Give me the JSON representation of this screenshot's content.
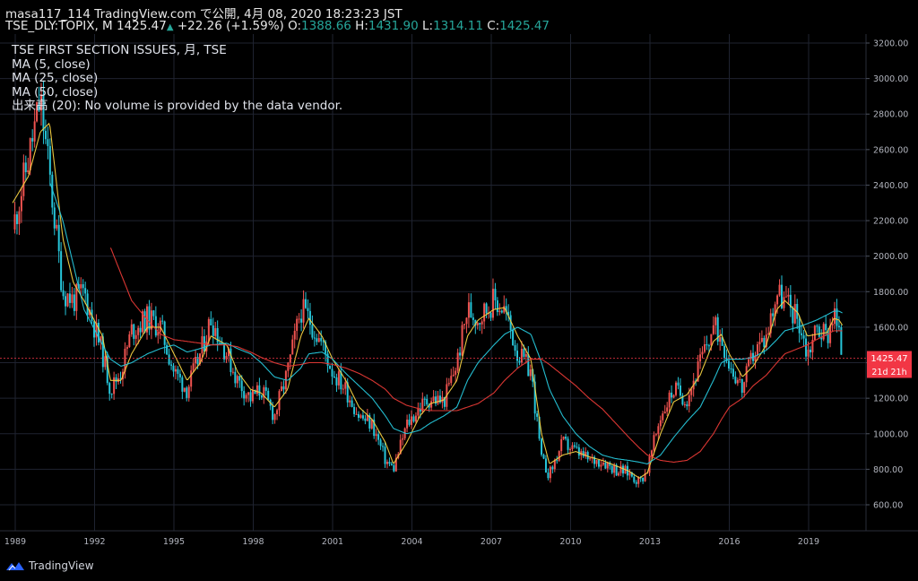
{
  "header": {
    "line1": "masa117_114 TradingView.com で公開, 4月 08, 2020 18:23:23 JST",
    "symbol": "TSE_DLY:TOPIX, M",
    "last": "1425.47",
    "change": "+22.26 (+1.59%)",
    "open_label": "O:",
    "open": "1388.66",
    "high_label": "H:",
    "high": "1431.90",
    "low_label": "L:",
    "low": "1314.11",
    "close_label": "C:",
    "close": "1425.47"
  },
  "legend": {
    "title": "TSE FIRST SECTION ISSUES, 月, TSE",
    "ma5": "MA (5, close)",
    "ma25": "MA (25, close)",
    "ma50": "MA (50, close)",
    "volume": "出来高 (20): No volume is provided by the data vendor."
  },
  "price_label": "1425.47",
  "countdown_label": "21d 21h",
  "footer": {
    "brand": "TradingView"
  },
  "colors": {
    "up": "#ef5350",
    "down": "#26c6da",
    "ma5": "#f5d142",
    "ma25": "#26c6da",
    "ma50": "#e53935",
    "last": "#f23645"
  },
  "chart_data": {
    "type": "line",
    "title": "TSE FIRST SECTION ISSUES",
    "interval": "monthly",
    "ylim": [
      500,
      3220
    ],
    "xlim": [
      1988.9,
      2021.2
    ],
    "y_ticks": [
      600,
      800,
      1000,
      1200,
      1400,
      1600,
      1800,
      2000,
      2200,
      2400,
      2600,
      2800,
      3000,
      3200
    ],
    "y_tick_labels": [
      "600.00",
      "800.00",
      "1000.00",
      "1200.00",
      "1400.00",
      "1600.00",
      "1800.00",
      "2000.00",
      "2200.00",
      "2400.00",
      "2600.00",
      "2800.00",
      "3000.00",
      "3200.00"
    ],
    "x_ticks": [
      1989,
      1992,
      1995,
      1998,
      2001,
      2004,
      2007,
      2010,
      2013,
      2016,
      2019
    ],
    "x_tick_labels": [
      "1989",
      "1992",
      "1995",
      "1998",
      "2001",
      "2004",
      "2007",
      "2010",
      "2013",
      "2016",
      "2019"
    ],
    "x": [
      1988.9,
      1989.5,
      1989.95,
      1990.3,
      1990.8,
      1991.2,
      1991.6,
      1992.3,
      1992.6,
      1993.0,
      1993.4,
      1994.0,
      1994.5,
      1995.0,
      1995.5,
      1996.0,
      1996.4,
      1997.0,
      1997.4,
      1997.9,
      1998.3,
      1998.8,
      1999.3,
      1999.8,
      2000.1,
      2000.6,
      2001.0,
      2001.5,
      2002.0,
      2002.5,
      2003.0,
      2003.3,
      2003.8,
      2004.3,
      2004.7,
      2005.2,
      2005.7,
      2006.1,
      2006.5,
      2007.1,
      2007.5,
      2008.0,
      2008.5,
      2008.9,
      2009.2,
      2009.7,
      2010.2,
      2010.7,
      2011.2,
      2011.7,
      2012.2,
      2012.6,
      2012.9,
      2013.4,
      2013.9,
      2014.4,
      2014.9,
      2015.4,
      2015.7,
      2016.0,
      2016.5,
      2016.9,
      2017.4,
      2017.8,
      2018.1,
      2018.6,
      2018.95,
      2019.3,
      2019.7,
      2019.95,
      2020.15,
      2020.28
    ],
    "series": [
      {
        "name": "TSE FIRST SECTION ISSUES",
        "values": [
          2150,
          2550,
          2880,
          2450,
          1800,
          1750,
          1800,
          1450,
          1250,
          1350,
          1580,
          1650,
          1600,
          1350,
          1250,
          1450,
          1650,
          1450,
          1300,
          1200,
          1250,
          1100,
          1350,
          1700,
          1650,
          1500,
          1350,
          1250,
          1100,
          1050,
          850,
          800,
          1050,
          1150,
          1200,
          1180,
          1400,
          1700,
          1650,
          1750,
          1700,
          1450,
          1350,
          850,
          770,
          950,
          900,
          850,
          850,
          800,
          780,
          730,
          800,
          1100,
          1250,
          1200,
          1400,
          1600,
          1550,
          1400,
          1250,
          1450,
          1550,
          1800,
          1750,
          1650,
          1450,
          1600,
          1550,
          1700,
          1550,
          1425.47
        ]
      },
      {
        "name": "MA (5, close)",
        "values": [
          2300,
          2450,
          2700,
          2750,
          2100,
          1850,
          1750,
          1550,
          1300,
          1300,
          1450,
          1600,
          1600,
          1450,
          1300,
          1400,
          1550,
          1500,
          1350,
          1250,
          1230,
          1150,
          1250,
          1550,
          1650,
          1550,
          1420,
          1300,
          1150,
          1080,
          950,
          830,
          950,
          1100,
          1170,
          1190,
          1300,
          1550,
          1640,
          1700,
          1710,
          1550,
          1420,
          1000,
          830,
          880,
          900,
          870,
          850,
          820,
          790,
          750,
          780,
          1000,
          1180,
          1220,
          1330,
          1520,
          1560,
          1450,
          1320,
          1380,
          1500,
          1700,
          1750,
          1680,
          1550,
          1560,
          1570,
          1650,
          1640,
          1610
        ]
      },
      {
        "name": "MA (25, close)",
        "values": [
          null,
          null,
          null,
          2420,
          2200,
          1950,
          1700,
          1500,
          1420,
          1380,
          1400,
          1450,
          1480,
          1500,
          1460,
          1480,
          1500,
          1510,
          1480,
          1450,
          1400,
          1320,
          1300,
          1370,
          1450,
          1460,
          1420,
          1340,
          1270,
          1200,
          1100,
          1030,
          1000,
          1020,
          1060,
          1100,
          1150,
          1300,
          1400,
          1500,
          1560,
          1600,
          1560,
          1400,
          1250,
          1100,
          1000,
          930,
          880,
          860,
          850,
          840,
          830,
          880,
          980,
          1070,
          1150,
          1300,
          1400,
          1420,
          1420,
          1430,
          1470,
          1530,
          1580,
          1600,
          1620,
          1640,
          1670,
          1690,
          1690,
          1680
        ]
      },
      {
        "name": "MA (50, close)",
        "values": [
          null,
          null,
          null,
          null,
          null,
          null,
          null,
          null,
          2050,
          1900,
          1750,
          1640,
          1560,
          1530,
          1520,
          1510,
          1500,
          1500,
          1490,
          1460,
          1430,
          1400,
          1380,
          1390,
          1400,
          1400,
          1390,
          1370,
          1340,
          1300,
          1250,
          1200,
          1160,
          1140,
          1130,
          1130,
          1130,
          1150,
          1170,
          1230,
          1300,
          1370,
          1420,
          1420,
          1390,
          1330,
          1270,
          1200,
          1140,
          1060,
          980,
          920,
          880,
          850,
          840,
          850,
          900,
          1000,
          1080,
          1150,
          1200,
          1270,
          1330,
          1400,
          1450,
          1480,
          1500,
          1530,
          1560,
          1580,
          1580,
          1580
        ]
      }
    ],
    "last_value": 1425.47,
    "grid": true,
    "price_axis": "right"
  }
}
